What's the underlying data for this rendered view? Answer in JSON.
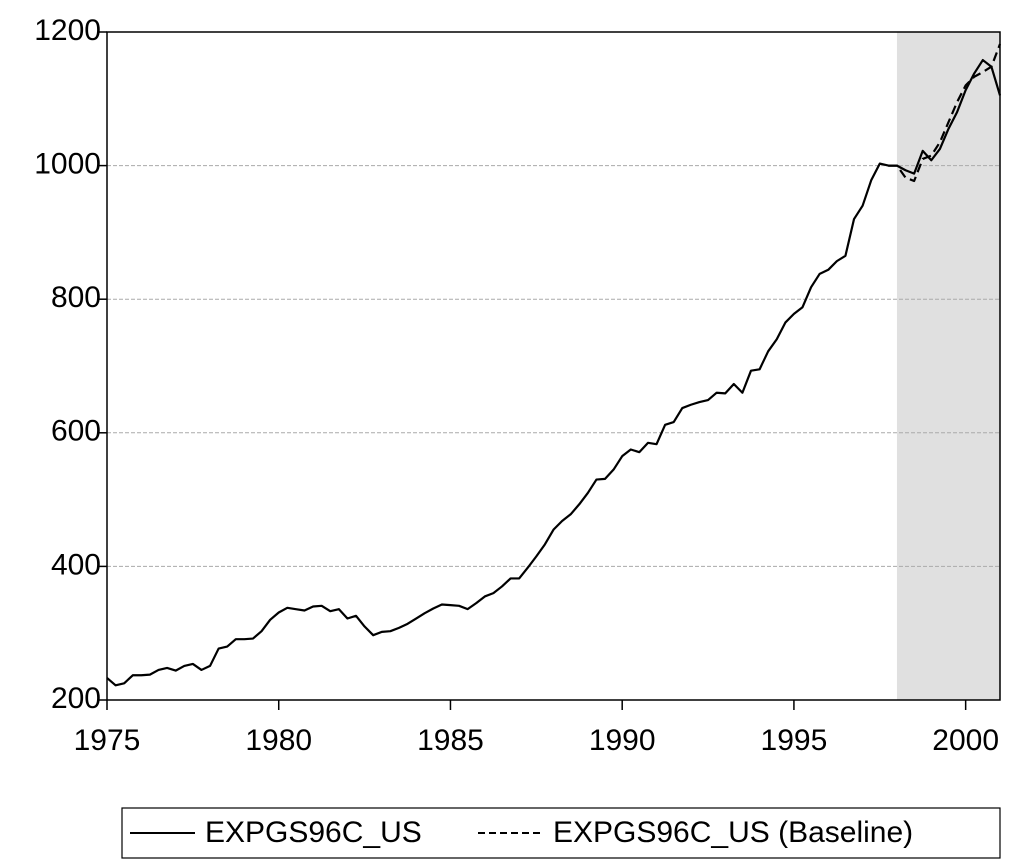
{
  "chart_data": {
    "type": "line",
    "x": [
      1975,
      1975.25,
      1975.5,
      1975.75,
      1976,
      1976.25,
      1976.5,
      1976.75,
      1977,
      1977.25,
      1977.5,
      1977.75,
      1978,
      1978.25,
      1978.5,
      1978.75,
      1979,
      1979.25,
      1979.5,
      1979.75,
      1980,
      1980.25,
      1980.5,
      1980.75,
      1981,
      1981.25,
      1981.5,
      1981.75,
      1982,
      1982.25,
      1982.5,
      1982.75,
      1983,
      1983.25,
      1983.5,
      1983.75,
      1984,
      1984.25,
      1984.5,
      1984.75,
      1985,
      1985.25,
      1985.5,
      1985.75,
      1986,
      1986.25,
      1986.5,
      1986.75,
      1987,
      1987.25,
      1987.5,
      1987.75,
      1988,
      1988.25,
      1988.5,
      1988.75,
      1989,
      1989.25,
      1989.5,
      1989.75,
      1990,
      1990.25,
      1990.5,
      1990.75,
      1991,
      1991.25,
      1991.5,
      1991.75,
      1992,
      1992.25,
      1992.5,
      1992.75,
      1993,
      1993.25,
      1993.5,
      1993.75,
      1994,
      1994.25,
      1994.5,
      1994.75,
      1995,
      1995.25,
      1995.5,
      1995.75,
      1996,
      1996.25,
      1996.5,
      1996.75,
      1997,
      1997.25,
      1997.5,
      1997.75,
      1998,
      1998.25,
      1998.5,
      1998.75,
      1999,
      1999.25,
      1999.5,
      1999.75,
      2000,
      2000.25,
      2000.5,
      2000.75,
      2001
    ],
    "series": [
      {
        "name": "EXPGS96C_US",
        "color": "#000000",
        "dash": false,
        "values": [
          233,
          222,
          225,
          237,
          237,
          238,
          245,
          248,
          244,
          251,
          254,
          245,
          251,
          277,
          280,
          291,
          291,
          292,
          303,
          320,
          331,
          338,
          336,
          334,
          340,
          341,
          333,
          336,
          322,
          326,
          310,
          297,
          302,
          303,
          308,
          314,
          322,
          330,
          337,
          343,
          342,
          341,
          336,
          345,
          355,
          360,
          370,
          382,
          382,
          398,
          415,
          433,
          455,
          468,
          478,
          493,
          510,
          530,
          531,
          545,
          565,
          575,
          571,
          585,
          583,
          612,
          616,
          637,
          642,
          646,
          649,
          660,
          659,
          673,
          660,
          693,
          695,
          722,
          740,
          765,
          778,
          788,
          818,
          838,
          844,
          857,
          865,
          920,
          940,
          978,
          1003,
          1000,
          1000,
          993,
          988,
          1022,
          1008,
          1025,
          1055,
          1080,
          1113,
          1138,
          1158,
          1148,
          1105
        ]
      },
      {
        "name": "EXPGS96C_US (Baseline)",
        "color": "#000000",
        "dash": true,
        "values": [
          null,
          null,
          null,
          null,
          null,
          null,
          null,
          null,
          null,
          null,
          null,
          null,
          null,
          null,
          null,
          null,
          null,
          null,
          null,
          null,
          null,
          null,
          null,
          null,
          null,
          null,
          null,
          null,
          null,
          null,
          null,
          null,
          null,
          null,
          null,
          null,
          null,
          null,
          null,
          null,
          null,
          null,
          null,
          null,
          null,
          null,
          null,
          null,
          null,
          null,
          null,
          null,
          null,
          null,
          null,
          null,
          null,
          null,
          null,
          null,
          null,
          null,
          null,
          null,
          null,
          null,
          null,
          null,
          null,
          null,
          null,
          null,
          null,
          null,
          null,
          null,
          null,
          null,
          null,
          null,
          null,
          null,
          null,
          null,
          null,
          null,
          null,
          null,
          null,
          null,
          null,
          1000,
          1000,
          982,
          977,
          1010,
          1015,
          1035,
          1065,
          1095,
          1120,
          1133,
          1140,
          1148,
          1182
        ]
      }
    ],
    "xlim": [
      1975,
      2001
    ],
    "xticks": [
      1975,
      1980,
      1985,
      1990,
      1995,
      2000
    ],
    "ylim": [
      200,
      1200
    ],
    "yticks": [
      200,
      400,
      600,
      800,
      1000,
      1200
    ],
    "grid": true,
    "shaded_range": [
      1998,
      2001
    ],
    "shade_color": "#e0e0e0",
    "legend": "bottom"
  }
}
